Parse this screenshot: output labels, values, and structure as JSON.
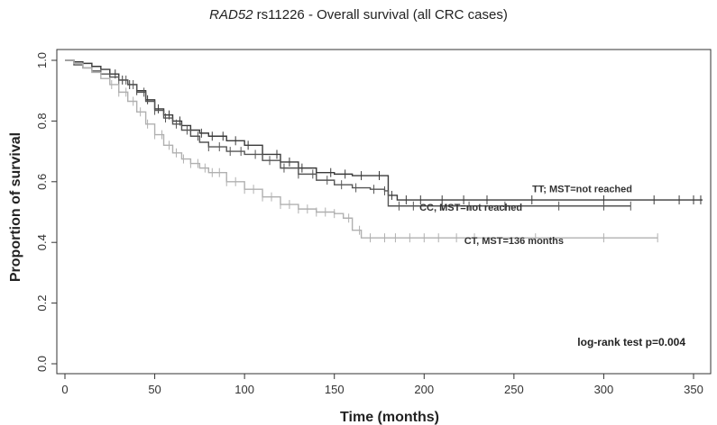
{
  "chart_data": {
    "type": "line",
    "title_gene": "RAD52",
    "title_rest": " rs11226 - Overall survival (all CRC cases)",
    "xlabel": "Time (months)",
    "ylabel": "Proportion of survival",
    "xlim": [
      0,
      360
    ],
    "ylim": [
      0,
      1
    ],
    "x_ticks": [
      0,
      50,
      100,
      150,
      200,
      250,
      300,
      350
    ],
    "y_ticks": [
      "0.0",
      "0.2",
      "0.4",
      "0.6",
      "0.8",
      "1.0"
    ],
    "y_tick_values": [
      0,
      0.2,
      0.4,
      0.6,
      0.8,
      1.0
    ],
    "annotation": "log-rank test p=0.004",
    "series": [
      {
        "name": "TT; MST=not reached",
        "color": "#3a3a3a",
        "label_x": 288,
        "label_y": 0.565,
        "points": [
          [
            0,
            1.0
          ],
          [
            5,
            0.995
          ],
          [
            10,
            0.99
          ],
          [
            15,
            0.98
          ],
          [
            20,
            0.97
          ],
          [
            25,
            0.955
          ],
          [
            30,
            0.935
          ],
          [
            35,
            0.92
          ],
          [
            40,
            0.9
          ],
          [
            45,
            0.87
          ],
          [
            50,
            0.84
          ],
          [
            55,
            0.82
          ],
          [
            60,
            0.8
          ],
          [
            65,
            0.785
          ],
          [
            70,
            0.77
          ],
          [
            75,
            0.76
          ],
          [
            80,
            0.75
          ],
          [
            90,
            0.735
          ],
          [
            100,
            0.72
          ],
          [
            110,
            0.69
          ],
          [
            120,
            0.665
          ],
          [
            130,
            0.645
          ],
          [
            140,
            0.63
          ],
          [
            150,
            0.625
          ],
          [
            160,
            0.62
          ],
          [
            170,
            0.62
          ],
          [
            178,
            0.62
          ],
          [
            180,
            0.555
          ],
          [
            185,
            0.54
          ],
          [
            200,
            0.54
          ],
          [
            250,
            0.54
          ],
          [
            300,
            0.54
          ],
          [
            355,
            0.54
          ]
        ],
        "censors": [
          28,
          32,
          36,
          40,
          46,
          52,
          58,
          64,
          70,
          76,
          82,
          88,
          95,
          102,
          110,
          118,
          125,
          132,
          140,
          148,
          156,
          165,
          175,
          182,
          190,
          198,
          210,
          222,
          235,
          260,
          300,
          328,
          342,
          350,
          354
        ]
      },
      {
        "name": "CC, MST=not reached",
        "color": "#555555",
        "label_x": 226,
        "label_y": 0.505,
        "points": [
          [
            0,
            1.0
          ],
          [
            5,
            0.985
          ],
          [
            10,
            0.975
          ],
          [
            15,
            0.965
          ],
          [
            20,
            0.955
          ],
          [
            25,
            0.945
          ],
          [
            30,
            0.935
          ],
          [
            35,
            0.92
          ],
          [
            40,
            0.895
          ],
          [
            45,
            0.865
          ],
          [
            50,
            0.835
          ],
          [
            55,
            0.81
          ],
          [
            60,
            0.79
          ],
          [
            65,
            0.77
          ],
          [
            70,
            0.75
          ],
          [
            75,
            0.73
          ],
          [
            80,
            0.715
          ],
          [
            90,
            0.7
          ],
          [
            100,
            0.69
          ],
          [
            110,
            0.67
          ],
          [
            120,
            0.645
          ],
          [
            130,
            0.625
          ],
          [
            140,
            0.605
          ],
          [
            150,
            0.59
          ],
          [
            160,
            0.58
          ],
          [
            170,
            0.575
          ],
          [
            178,
            0.57
          ],
          [
            180,
            0.52
          ],
          [
            200,
            0.52
          ],
          [
            250,
            0.52
          ],
          [
            300,
            0.52
          ],
          [
            315,
            0.52
          ]
        ],
        "censors": [
          30,
          34,
          38,
          44,
          50,
          56,
          62,
          68,
          74,
          80,
          86,
          92,
          98,
          106,
          114,
          122,
          130,
          138,
          146,
          154,
          162,
          172,
          178,
          186,
          194,
          210,
          225,
          245,
          275,
          300,
          315
        ]
      },
      {
        "name": "CT, MST=136 months",
        "color": "#b0b0b0",
        "label_x": 250,
        "label_y": 0.395,
        "points": [
          [
            0,
            1.0
          ],
          [
            5,
            0.99
          ],
          [
            10,
            0.975
          ],
          [
            15,
            0.96
          ],
          [
            20,
            0.94
          ],
          [
            25,
            0.92
          ],
          [
            30,
            0.895
          ],
          [
            35,
            0.865
          ],
          [
            40,
            0.83
          ],
          [
            45,
            0.79
          ],
          [
            50,
            0.755
          ],
          [
            55,
            0.72
          ],
          [
            60,
            0.695
          ],
          [
            65,
            0.675
          ],
          [
            70,
            0.66
          ],
          [
            75,
            0.645
          ],
          [
            80,
            0.63
          ],
          [
            90,
            0.6
          ],
          [
            100,
            0.575
          ],
          [
            110,
            0.55
          ],
          [
            120,
            0.525
          ],
          [
            130,
            0.51
          ],
          [
            140,
            0.5
          ],
          [
            150,
            0.495
          ],
          [
            155,
            0.48
          ],
          [
            160,
            0.44
          ],
          [
            165,
            0.415
          ],
          [
            200,
            0.415
          ],
          [
            250,
            0.415
          ],
          [
            300,
            0.415
          ],
          [
            330,
            0.415
          ]
        ],
        "censors": [
          26,
          30,
          34,
          38,
          42,
          46,
          50,
          54,
          58,
          62,
          66,
          70,
          74,
          78,
          82,
          86,
          90,
          95,
          100,
          105,
          110,
          115,
          120,
          125,
          130,
          135,
          140,
          145,
          150,
          158,
          164,
          170,
          178,
          184,
          192,
          200,
          208,
          218,
          228,
          262,
          300,
          330
        ]
      }
    ]
  }
}
